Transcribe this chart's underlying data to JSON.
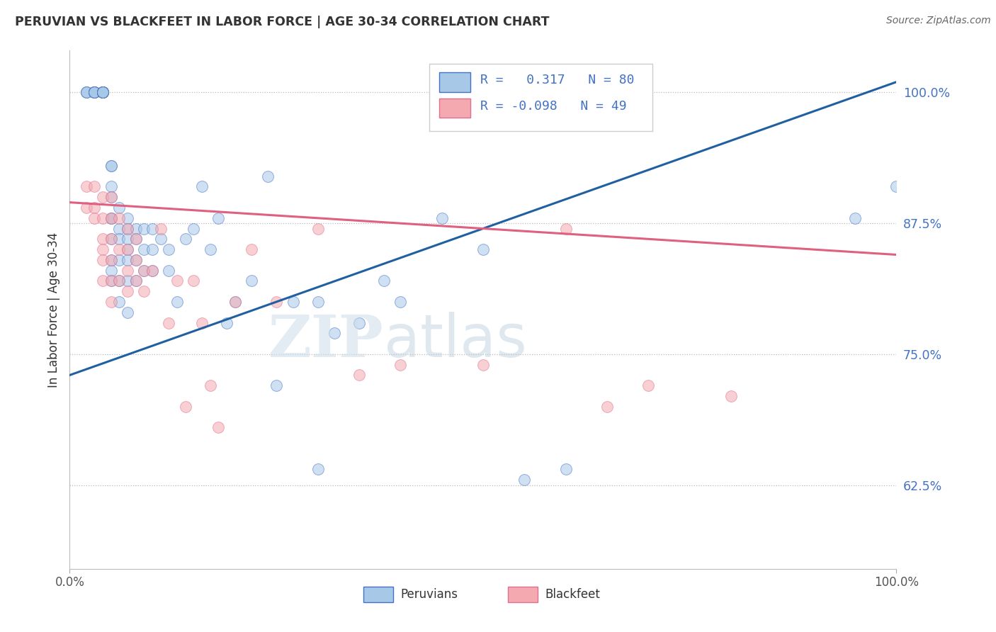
{
  "title": "PERUVIAN VS BLACKFEET IN LABOR FORCE | AGE 30-34 CORRELATION CHART",
  "source": "Source: ZipAtlas.com",
  "ylabel": "In Labor Force | Age 30-34",
  "xlim": [
    0.0,
    1.0
  ],
  "ylim": [
    0.545,
    1.04
  ],
  "blue_R": 0.317,
  "blue_N": 80,
  "pink_R": -0.098,
  "pink_N": 49,
  "blue_color": "#a8c8e8",
  "pink_color": "#f4a8b0",
  "blue_edge_color": "#4472c4",
  "pink_edge_color": "#e07090",
  "blue_line_color": "#2060a0",
  "pink_line_color": "#e06080",
  "blue_trend": [
    0.0,
    0.73,
    1.0,
    1.01
  ],
  "pink_trend": [
    0.0,
    0.895,
    1.0,
    0.845
  ],
  "yticks": [
    0.625,
    0.75,
    0.875,
    1.0
  ],
  "ytick_labels": [
    "62.5%",
    "75.0%",
    "87.5%",
    "100.0%"
  ],
  "peruvians_x": [
    0.02,
    0.02,
    0.02,
    0.03,
    0.03,
    0.03,
    0.03,
    0.03,
    0.03,
    0.03,
    0.04,
    0.04,
    0.04,
    0.04,
    0.04,
    0.04,
    0.04,
    0.04,
    0.04,
    0.04,
    0.05,
    0.05,
    0.05,
    0.05,
    0.05,
    0.05,
    0.05,
    0.05,
    0.05,
    0.05,
    0.06,
    0.06,
    0.06,
    0.06,
    0.06,
    0.06,
    0.07,
    0.07,
    0.07,
    0.07,
    0.07,
    0.07,
    0.07,
    0.08,
    0.08,
    0.08,
    0.08,
    0.09,
    0.09,
    0.09,
    0.1,
    0.1,
    0.1,
    0.11,
    0.12,
    0.12,
    0.13,
    0.14,
    0.15,
    0.16,
    0.17,
    0.18,
    0.19,
    0.2,
    0.22,
    0.24,
    0.27,
    0.3,
    0.32,
    0.35,
    0.38,
    0.4,
    0.45,
    0.5,
    0.55,
    0.6,
    0.95,
    1.0,
    0.25,
    0.3
  ],
  "peruvians_y": [
    1.0,
    1.0,
    1.0,
    1.0,
    1.0,
    1.0,
    1.0,
    1.0,
    1.0,
    1.0,
    1.0,
    1.0,
    1.0,
    1.0,
    1.0,
    1.0,
    1.0,
    1.0,
    1.0,
    1.0,
    0.93,
    0.93,
    0.91,
    0.9,
    0.88,
    0.86,
    0.84,
    0.83,
    0.82,
    0.88,
    0.89,
    0.87,
    0.86,
    0.84,
    0.82,
    0.8,
    0.88,
    0.87,
    0.86,
    0.85,
    0.84,
    0.82,
    0.79,
    0.87,
    0.86,
    0.84,
    0.82,
    0.87,
    0.85,
    0.83,
    0.87,
    0.85,
    0.83,
    0.86,
    0.85,
    0.83,
    0.8,
    0.86,
    0.87,
    0.91,
    0.85,
    0.88,
    0.78,
    0.8,
    0.82,
    0.92,
    0.8,
    0.8,
    0.77,
    0.78,
    0.82,
    0.8,
    0.88,
    0.85,
    0.63,
    0.64,
    0.88,
    0.91,
    0.72,
    0.64
  ],
  "blackfeet_x": [
    0.02,
    0.02,
    0.03,
    0.03,
    0.03,
    0.04,
    0.04,
    0.04,
    0.04,
    0.04,
    0.04,
    0.05,
    0.05,
    0.05,
    0.05,
    0.05,
    0.05,
    0.06,
    0.06,
    0.06,
    0.07,
    0.07,
    0.07,
    0.07,
    0.08,
    0.08,
    0.08,
    0.09,
    0.09,
    0.1,
    0.11,
    0.12,
    0.13,
    0.14,
    0.15,
    0.16,
    0.17,
    0.18,
    0.2,
    0.22,
    0.25,
    0.3,
    0.35,
    0.4,
    0.5,
    0.6,
    0.65,
    0.7,
    0.8
  ],
  "blackfeet_y": [
    0.91,
    0.89,
    0.91,
    0.89,
    0.88,
    0.9,
    0.88,
    0.86,
    0.85,
    0.84,
    0.82,
    0.9,
    0.88,
    0.86,
    0.84,
    0.82,
    0.8,
    0.88,
    0.85,
    0.82,
    0.87,
    0.85,
    0.83,
    0.81,
    0.86,
    0.84,
    0.82,
    0.83,
    0.81,
    0.83,
    0.87,
    0.78,
    0.82,
    0.7,
    0.82,
    0.78,
    0.72,
    0.68,
    0.8,
    0.85,
    0.8,
    0.87,
    0.73,
    0.74,
    0.74,
    0.87,
    0.7,
    0.72,
    0.71
  ]
}
